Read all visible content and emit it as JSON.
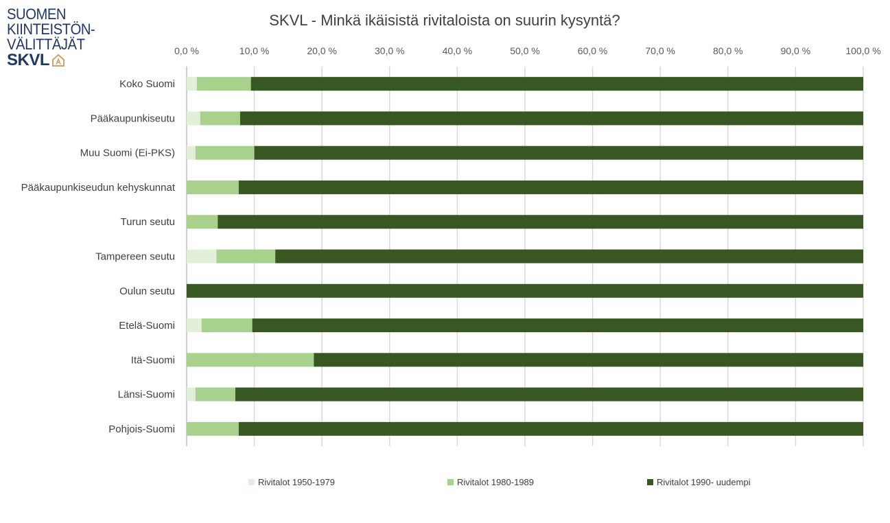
{
  "logo": {
    "lines": [
      "SUOMEN",
      "KIINTEISTÖN-",
      "VÄLITTÄJÄT"
    ],
    "brand": "SKVL",
    "icon": "house-icon",
    "brand_color": "#1f3864",
    "icon_color": "#c8a36a"
  },
  "chart_data": {
    "type": "bar",
    "orientation": "horizontal",
    "stacked": "percent",
    "title": "SKVL - Minkä ikäisistä rivitaloista on suurin kysyntä?",
    "xlabel": "",
    "ylabel": "",
    "xlim": [
      0,
      100
    ],
    "x_axis_position": "top",
    "x_ticks": [
      "0,0 %",
      "10,0 %",
      "20,0 %",
      "30,0 %",
      "40,0 %",
      "50,0 %",
      "60,0 %",
      "70,0 %",
      "80,0 %",
      "90,0 %",
      "100,0 %"
    ],
    "grid": true,
    "legend_position": "bottom",
    "categories": [
      "Koko Suomi",
      "Pääkaupunkiseutu",
      "Muu Suomi (Ei-PKS)",
      "Pääkaupunkiseudun kehyskunnat",
      "Turun seutu",
      "Tampereen seutu",
      "Oulun seutu",
      "Etelä-Suomi",
      "Itä-Suomi",
      "Länsi-Suomi",
      "Pohjois-Suomi"
    ],
    "series": [
      {
        "name": "Rivitalot 1950-1979",
        "color": "#e2efd9",
        "values": [
          1.5,
          2.0,
          1.3,
          0.0,
          0.0,
          4.4,
          0.0,
          2.2,
          0.0,
          1.3,
          0.0
        ]
      },
      {
        "name": "Rivitalot 1980-1989",
        "color": "#a9d18e",
        "values": [
          8.0,
          5.9,
          8.7,
          7.7,
          4.6,
          8.7,
          0.0,
          7.5,
          18.8,
          5.9,
          7.7
        ]
      },
      {
        "name": "Rivitalot 1990- uudempi",
        "color": "#385723",
        "values": [
          90.5,
          92.1,
          90.0,
          92.3,
          95.4,
          86.9,
          100.0,
          90.3,
          81.2,
          92.8,
          92.3
        ]
      }
    ]
  }
}
